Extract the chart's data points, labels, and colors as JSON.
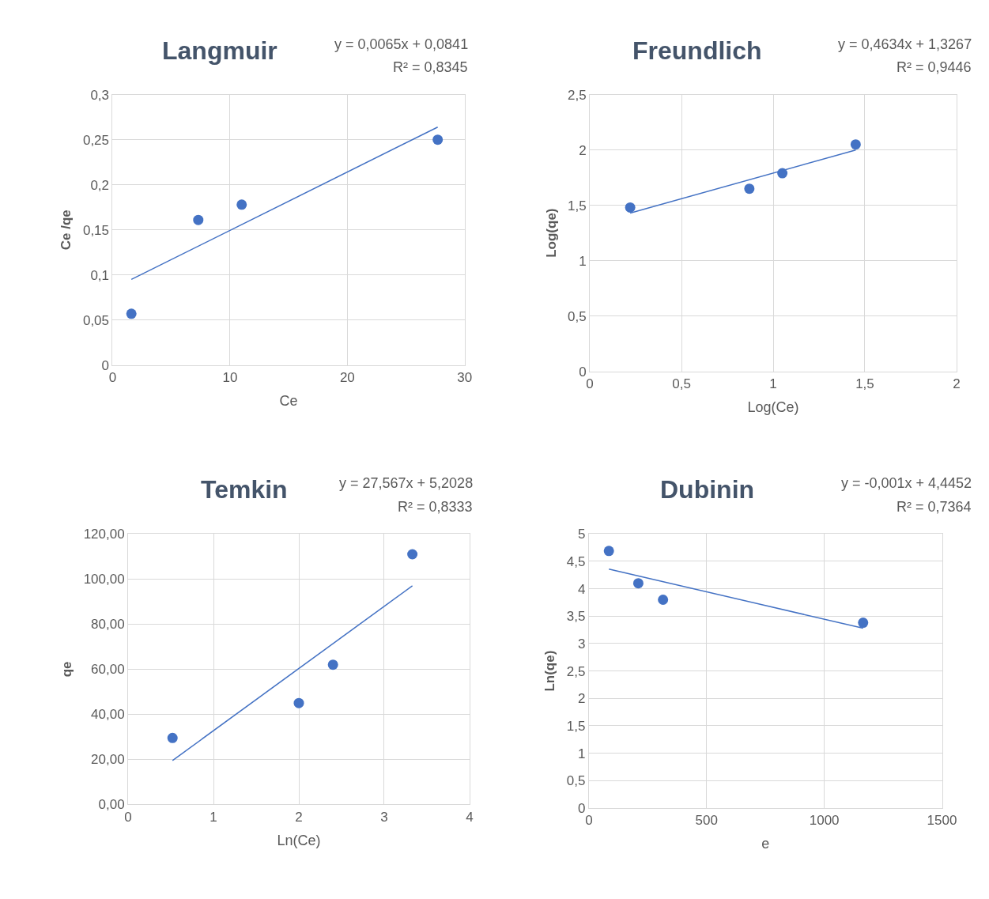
{
  "chart_data": [
    {
      "type": "scatter",
      "title": "Langmuir",
      "xlabel": "Ce",
      "ylabel": "Ce /qe",
      "annotations": [
        "y = 0,0065x + 0,0841",
        "R² = 0,8345"
      ],
      "x": [
        1.6,
        7.3,
        11,
        27.7
      ],
      "grid": true,
      "series": [
        {
          "color": "#4472c4",
          "marker": "circle",
          "values": [
            0.057,
            0.161,
            0.178,
            0.25
          ]
        },
        {
          "type": "line",
          "color": "#4472c4",
          "x": [
            1.6,
            27.7
          ],
          "values": [
            0.095,
            0.264
          ],
          "marker": "none",
          "line_style": "solid"
        }
      ],
      "xlim": [
        0,
        30
      ],
      "xticks": [
        0,
        10,
        20,
        30
      ],
      "ylim": [
        0,
        0.3
      ],
      "yticks": [
        0,
        {
          "value": 0.05,
          "label": "0,05"
        },
        {
          "value": 0.1,
          "label": "0,1"
        },
        {
          "value": 0.15,
          "label": "0,15"
        },
        {
          "value": 0.2,
          "label": "0,2"
        },
        {
          "value": 0.25,
          "label": "0,25"
        },
        {
          "value": 0.3,
          "label": "0,3"
        }
      ]
    },
    {
      "type": "scatter",
      "title": "Freundlich",
      "xlabel": "Log(Ce)",
      "ylabel": "Log(qe)",
      "annotations": [
        "y = 0,4634x + 1,3267",
        "R² = 0,9446"
      ],
      "x": [
        0.22,
        0.87,
        1.05,
        1.45
      ],
      "grid": true,
      "series": [
        {
          "color": "#4472c4",
          "marker": "circle",
          "values": [
            1.48,
            1.65,
            1.79,
            2.05
          ]
        },
        {
          "type": "line",
          "color": "#4472c4",
          "x": [
            0.22,
            1.45
          ],
          "values": [
            1.43,
            2.0
          ],
          "marker": "none",
          "line_style": "solid"
        }
      ],
      "xlim": [
        0,
        2
      ],
      "xticks": [
        0,
        {
          "value": 0.5,
          "label": "0,5"
        },
        1,
        {
          "value": 1.5,
          "label": "1,5"
        },
        2
      ],
      "ylim": [
        0,
        2.5
      ],
      "yticks": [
        0,
        {
          "value": 0.5,
          "label": "0,5"
        },
        1,
        {
          "value": 1.5,
          "label": "1,5"
        },
        2,
        {
          "value": 2.5,
          "label": "2,5"
        }
      ]
    },
    {
      "type": "scatter",
      "title": "Temkin",
      "xlabel": "Ln(Ce)",
      "ylabel": "qe",
      "annotations": [
        "y = 27,567x + 5,2028",
        "R² = 0,8333"
      ],
      "x": [
        0.52,
        2.0,
        2.4,
        3.33
      ],
      "grid": true,
      "series": [
        {
          "color": "#4472c4",
          "marker": "circle",
          "values": [
            29.5,
            45,
            62,
            111
          ]
        },
        {
          "type": "line",
          "color": "#4472c4",
          "x": [
            0.52,
            3.33
          ],
          "values": [
            19.5,
            97
          ],
          "marker": "none",
          "line_style": "solid"
        }
      ],
      "xlim": [
        0,
        4
      ],
      "xticks": [
        0,
        1,
        2,
        3,
        4
      ],
      "ylim": [
        0,
        120
      ],
      "yticks": [
        {
          "value": 0,
          "label": "0,00"
        },
        {
          "value": 20,
          "label": "20,00"
        },
        {
          "value": 40,
          "label": "40,00"
        },
        {
          "value": 60,
          "label": "60,00"
        },
        {
          "value": 80,
          "label": "80,00"
        },
        {
          "value": 100,
          "label": "100,00"
        },
        {
          "value": 120,
          "label": "120,00"
        }
      ]
    },
    {
      "type": "scatter",
      "title": "Dubinin",
      "xlabel": "e",
      "ylabel": "Ln(qe)",
      "annotations": [
        "y = -0,001x + 4,4452",
        "R² = 0,7364"
      ],
      "x": [
        85,
        210,
        315,
        1165
      ],
      "grid": true,
      "series": [
        {
          "color": "#4472c4",
          "marker": "circle",
          "values": [
            4.69,
            4.1,
            3.8,
            3.38
          ]
        },
        {
          "type": "line",
          "color": "#4472c4",
          "x": [
            85,
            1165
          ],
          "values": [
            4.36,
            3.28
          ],
          "marker": "none",
          "line_style": "solid"
        }
      ],
      "xlim": [
        0,
        1500
      ],
      "xticks": [
        0,
        500,
        1000,
        1500
      ],
      "ylim": [
        0,
        5
      ],
      "yticks": [
        0,
        {
          "value": 0.5,
          "label": "0,5"
        },
        1,
        {
          "value": 1.5,
          "label": "1,5"
        },
        2,
        {
          "value": 2.5,
          "label": "2,5"
        },
        3,
        {
          "value": 3.5,
          "label": "3,5"
        },
        4,
        {
          "value": 4.5,
          "label": "4,5"
        },
        5
      ]
    }
  ]
}
